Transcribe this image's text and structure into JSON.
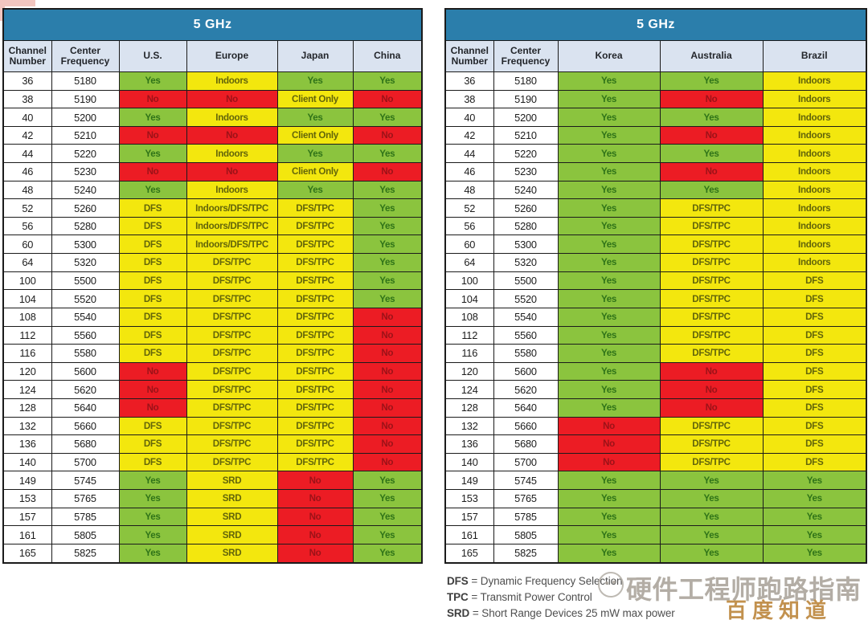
{
  "colors": {
    "header_blue": "#2B7EAB",
    "subheader_gray": "#DAE3F0",
    "green": "#8BC43E",
    "green_text": "#2F7318",
    "yellow": "#F3E70E",
    "yellow_text": "#63650A",
    "red": "#EC1C24",
    "red_text": "#9C1218",
    "watermark_gray": "#ABA59C",
    "watermark_orange": "#C2914E"
  },
  "chart_data": [
    {
      "type": "table",
      "title": "5 GHz",
      "columns": [
        "Channel Number",
        "Center Frequency",
        "U.S.",
        "Europe",
        "Japan",
        "China"
      ],
      "status_colors": {
        "g": "green",
        "y": "yellow",
        "r": "red"
      },
      "rows": [
        [
          "36",
          "5180",
          [
            "Yes",
            "g"
          ],
          [
            "Indoors",
            "y"
          ],
          [
            "Yes",
            "g"
          ],
          [
            "Yes",
            "g"
          ]
        ],
        [
          "38",
          "5190",
          [
            "No",
            "r"
          ],
          [
            "No",
            "r"
          ],
          [
            "Client Only",
            "y"
          ],
          [
            "No",
            "r"
          ]
        ],
        [
          "40",
          "5200",
          [
            "Yes",
            "g"
          ],
          [
            "Indoors",
            "y"
          ],
          [
            "Yes",
            "g"
          ],
          [
            "Yes",
            "g"
          ]
        ],
        [
          "42",
          "5210",
          [
            "No",
            "r"
          ],
          [
            "No",
            "r"
          ],
          [
            "Client Only",
            "y"
          ],
          [
            "No",
            "r"
          ]
        ],
        [
          "44",
          "5220",
          [
            "Yes",
            "g"
          ],
          [
            "Indoors",
            "y"
          ],
          [
            "Yes",
            "g"
          ],
          [
            "Yes",
            "g"
          ]
        ],
        [
          "46",
          "5230",
          [
            "No",
            "r"
          ],
          [
            "No",
            "r"
          ],
          [
            "Client Only",
            "y"
          ],
          [
            "No",
            "r"
          ]
        ],
        [
          "48",
          "5240",
          [
            "Yes",
            "g"
          ],
          [
            "Indoors",
            "y"
          ],
          [
            "Yes",
            "g"
          ],
          [
            "Yes",
            "g"
          ]
        ],
        [
          "52",
          "5260",
          [
            "DFS",
            "y"
          ],
          [
            "Indoors/DFS/TPC",
            "y"
          ],
          [
            "DFS/TPC",
            "y"
          ],
          [
            "Yes",
            "g"
          ]
        ],
        [
          "56",
          "5280",
          [
            "DFS",
            "y"
          ],
          [
            "Indoors/DFS/TPC",
            "y"
          ],
          [
            "DFS/TPC",
            "y"
          ],
          [
            "Yes",
            "g"
          ]
        ],
        [
          "60",
          "5300",
          [
            "DFS",
            "y"
          ],
          [
            "Indoors/DFS/TPC",
            "y"
          ],
          [
            "DFS/TPC",
            "y"
          ],
          [
            "Yes",
            "g"
          ]
        ],
        [
          "64",
          "5320",
          [
            "DFS",
            "y"
          ],
          [
            "DFS/TPC",
            "y"
          ],
          [
            "DFS/TPC",
            "y"
          ],
          [
            "Yes",
            "g"
          ]
        ],
        [
          "100",
          "5500",
          [
            "DFS",
            "y"
          ],
          [
            "DFS/TPC",
            "y"
          ],
          [
            "DFS/TPC",
            "y"
          ],
          [
            "Yes",
            "g"
          ]
        ],
        [
          "104",
          "5520",
          [
            "DFS",
            "y"
          ],
          [
            "DFS/TPC",
            "y"
          ],
          [
            "DFS/TPC",
            "y"
          ],
          [
            "Yes",
            "g"
          ]
        ],
        [
          "108",
          "5540",
          [
            "DFS",
            "y"
          ],
          [
            "DFS/TPC",
            "y"
          ],
          [
            "DFS/TPC",
            "y"
          ],
          [
            "No",
            "r"
          ]
        ],
        [
          "112",
          "5560",
          [
            "DFS",
            "y"
          ],
          [
            "DFS/TPC",
            "y"
          ],
          [
            "DFS/TPC",
            "y"
          ],
          [
            "No",
            "r"
          ]
        ],
        [
          "116",
          "5580",
          [
            "DFS",
            "y"
          ],
          [
            "DFS/TPC",
            "y"
          ],
          [
            "DFS/TPC",
            "y"
          ],
          [
            "No",
            "r"
          ]
        ],
        [
          "120",
          "5600",
          [
            "No",
            "r"
          ],
          [
            "DFS/TPC",
            "y"
          ],
          [
            "DFS/TPC",
            "y"
          ],
          [
            "No",
            "r"
          ]
        ],
        [
          "124",
          "5620",
          [
            "No",
            "r"
          ],
          [
            "DFS/TPC",
            "y"
          ],
          [
            "DFS/TPC",
            "y"
          ],
          [
            "No",
            "r"
          ]
        ],
        [
          "128",
          "5640",
          [
            "No",
            "r"
          ],
          [
            "DFS/TPC",
            "y"
          ],
          [
            "DFS/TPC",
            "y"
          ],
          [
            "No",
            "r"
          ]
        ],
        [
          "132",
          "5660",
          [
            "DFS",
            "y"
          ],
          [
            "DFS/TPC",
            "y"
          ],
          [
            "DFS/TPC",
            "y"
          ],
          [
            "No",
            "r"
          ]
        ],
        [
          "136",
          "5680",
          [
            "DFS",
            "y"
          ],
          [
            "DFS/TPC",
            "y"
          ],
          [
            "DFS/TPC",
            "y"
          ],
          [
            "No",
            "r"
          ]
        ],
        [
          "140",
          "5700",
          [
            "DFS",
            "y"
          ],
          [
            "DFS/TPC",
            "y"
          ],
          [
            "DFS/TPC",
            "y"
          ],
          [
            "No",
            "r"
          ]
        ],
        [
          "149",
          "5745",
          [
            "Yes",
            "g"
          ],
          [
            "SRD",
            "y"
          ],
          [
            "No",
            "r"
          ],
          [
            "Yes",
            "g"
          ]
        ],
        [
          "153",
          "5765",
          [
            "Yes",
            "g"
          ],
          [
            "SRD",
            "y"
          ],
          [
            "No",
            "r"
          ],
          [
            "Yes",
            "g"
          ]
        ],
        [
          "157",
          "5785",
          [
            "Yes",
            "g"
          ],
          [
            "SRD",
            "y"
          ],
          [
            "No",
            "r"
          ],
          [
            "Yes",
            "g"
          ]
        ],
        [
          "161",
          "5805",
          [
            "Yes",
            "g"
          ],
          [
            "SRD",
            "y"
          ],
          [
            "No",
            "r"
          ],
          [
            "Yes",
            "g"
          ]
        ],
        [
          "165",
          "5825",
          [
            "Yes",
            "g"
          ],
          [
            "SRD",
            "y"
          ],
          [
            "No",
            "r"
          ],
          [
            "Yes",
            "g"
          ]
        ]
      ]
    },
    {
      "type": "table",
      "title": "5 GHz",
      "columns": [
        "Channel Number",
        "Center Frequency",
        "Korea",
        "Australia",
        "Brazil"
      ],
      "status_colors": {
        "g": "green",
        "y": "yellow",
        "r": "red"
      },
      "rows": [
        [
          "36",
          "5180",
          [
            "Yes",
            "g"
          ],
          [
            "Yes",
            "g"
          ],
          [
            "Indoors",
            "y"
          ]
        ],
        [
          "38",
          "5190",
          [
            "Yes",
            "g"
          ],
          [
            "No",
            "r"
          ],
          [
            "Indoors",
            "y"
          ]
        ],
        [
          "40",
          "5200",
          [
            "Yes",
            "g"
          ],
          [
            "Yes",
            "g"
          ],
          [
            "Indoors",
            "y"
          ]
        ],
        [
          "42",
          "5210",
          [
            "Yes",
            "g"
          ],
          [
            "No",
            "r"
          ],
          [
            "Indoors",
            "y"
          ]
        ],
        [
          "44",
          "5220",
          [
            "Yes",
            "g"
          ],
          [
            "Yes",
            "g"
          ],
          [
            "Indoors",
            "y"
          ]
        ],
        [
          "46",
          "5230",
          [
            "Yes",
            "g"
          ],
          [
            "No",
            "r"
          ],
          [
            "Indoors",
            "y"
          ]
        ],
        [
          "48",
          "5240",
          [
            "Yes",
            "g"
          ],
          [
            "Yes",
            "g"
          ],
          [
            "Indoors",
            "y"
          ]
        ],
        [
          "52",
          "5260",
          [
            "Yes",
            "g"
          ],
          [
            "DFS/TPC",
            "y"
          ],
          [
            "Indoors",
            "y"
          ]
        ],
        [
          "56",
          "5280",
          [
            "Yes",
            "g"
          ],
          [
            "DFS/TPC",
            "y"
          ],
          [
            "Indoors",
            "y"
          ]
        ],
        [
          "60",
          "5300",
          [
            "Yes",
            "g"
          ],
          [
            "DFS/TPC",
            "y"
          ],
          [
            "Indoors",
            "y"
          ]
        ],
        [
          "64",
          "5320",
          [
            "Yes",
            "g"
          ],
          [
            "DFS/TPC",
            "y"
          ],
          [
            "Indoors",
            "y"
          ]
        ],
        [
          "100",
          "5500",
          [
            "Yes",
            "g"
          ],
          [
            "DFS/TPC",
            "y"
          ],
          [
            "DFS",
            "y"
          ]
        ],
        [
          "104",
          "5520",
          [
            "Yes",
            "g"
          ],
          [
            "DFS/TPC",
            "y"
          ],
          [
            "DFS",
            "y"
          ]
        ],
        [
          "108",
          "5540",
          [
            "Yes",
            "g"
          ],
          [
            "DFS/TPC",
            "y"
          ],
          [
            "DFS",
            "y"
          ]
        ],
        [
          "112",
          "5560",
          [
            "Yes",
            "g"
          ],
          [
            "DFS/TPC",
            "y"
          ],
          [
            "DFS",
            "y"
          ]
        ],
        [
          "116",
          "5580",
          [
            "Yes",
            "g"
          ],
          [
            "DFS/TPC",
            "y"
          ],
          [
            "DFS",
            "y"
          ]
        ],
        [
          "120",
          "5600",
          [
            "Yes",
            "g"
          ],
          [
            "No",
            "r"
          ],
          [
            "DFS",
            "y"
          ]
        ],
        [
          "124",
          "5620",
          [
            "Yes",
            "g"
          ],
          [
            "No",
            "r"
          ],
          [
            "DFS",
            "y"
          ]
        ],
        [
          "128",
          "5640",
          [
            "Yes",
            "g"
          ],
          [
            "No",
            "r"
          ],
          [
            "DFS",
            "y"
          ]
        ],
        [
          "132",
          "5660",
          [
            "No",
            "r"
          ],
          [
            "DFS/TPC",
            "y"
          ],
          [
            "DFS",
            "y"
          ]
        ],
        [
          "136",
          "5680",
          [
            "No",
            "r"
          ],
          [
            "DFS/TPC",
            "y"
          ],
          [
            "DFS",
            "y"
          ]
        ],
        [
          "140",
          "5700",
          [
            "No",
            "r"
          ],
          [
            "DFS/TPC",
            "y"
          ],
          [
            "DFS",
            "y"
          ]
        ],
        [
          "149",
          "5745",
          [
            "Yes",
            "g"
          ],
          [
            "Yes",
            "g"
          ],
          [
            "Yes",
            "g"
          ]
        ],
        [
          "153",
          "5765",
          [
            "Yes",
            "g"
          ],
          [
            "Yes",
            "g"
          ],
          [
            "Yes",
            "g"
          ]
        ],
        [
          "157",
          "5785",
          [
            "Yes",
            "g"
          ],
          [
            "Yes",
            "g"
          ],
          [
            "Yes",
            "g"
          ]
        ],
        [
          "161",
          "5805",
          [
            "Yes",
            "g"
          ],
          [
            "Yes",
            "g"
          ],
          [
            "Yes",
            "g"
          ]
        ],
        [
          "165",
          "5825",
          [
            "Yes",
            "g"
          ],
          [
            "Yes",
            "g"
          ],
          [
            "Yes",
            "g"
          ]
        ]
      ]
    }
  ],
  "legend": [
    {
      "abbr": "DFS",
      "rest": "= Dynamic Frequency Selection"
    },
    {
      "abbr": "TPC",
      "rest": "= Transmit Power Control"
    },
    {
      "abbr": "SRD",
      "rest": "= Short Range Devices 25 mW max power"
    }
  ],
  "watermark": {
    "brand": "硬件工程师跑路指南",
    "site": "百度知道"
  }
}
